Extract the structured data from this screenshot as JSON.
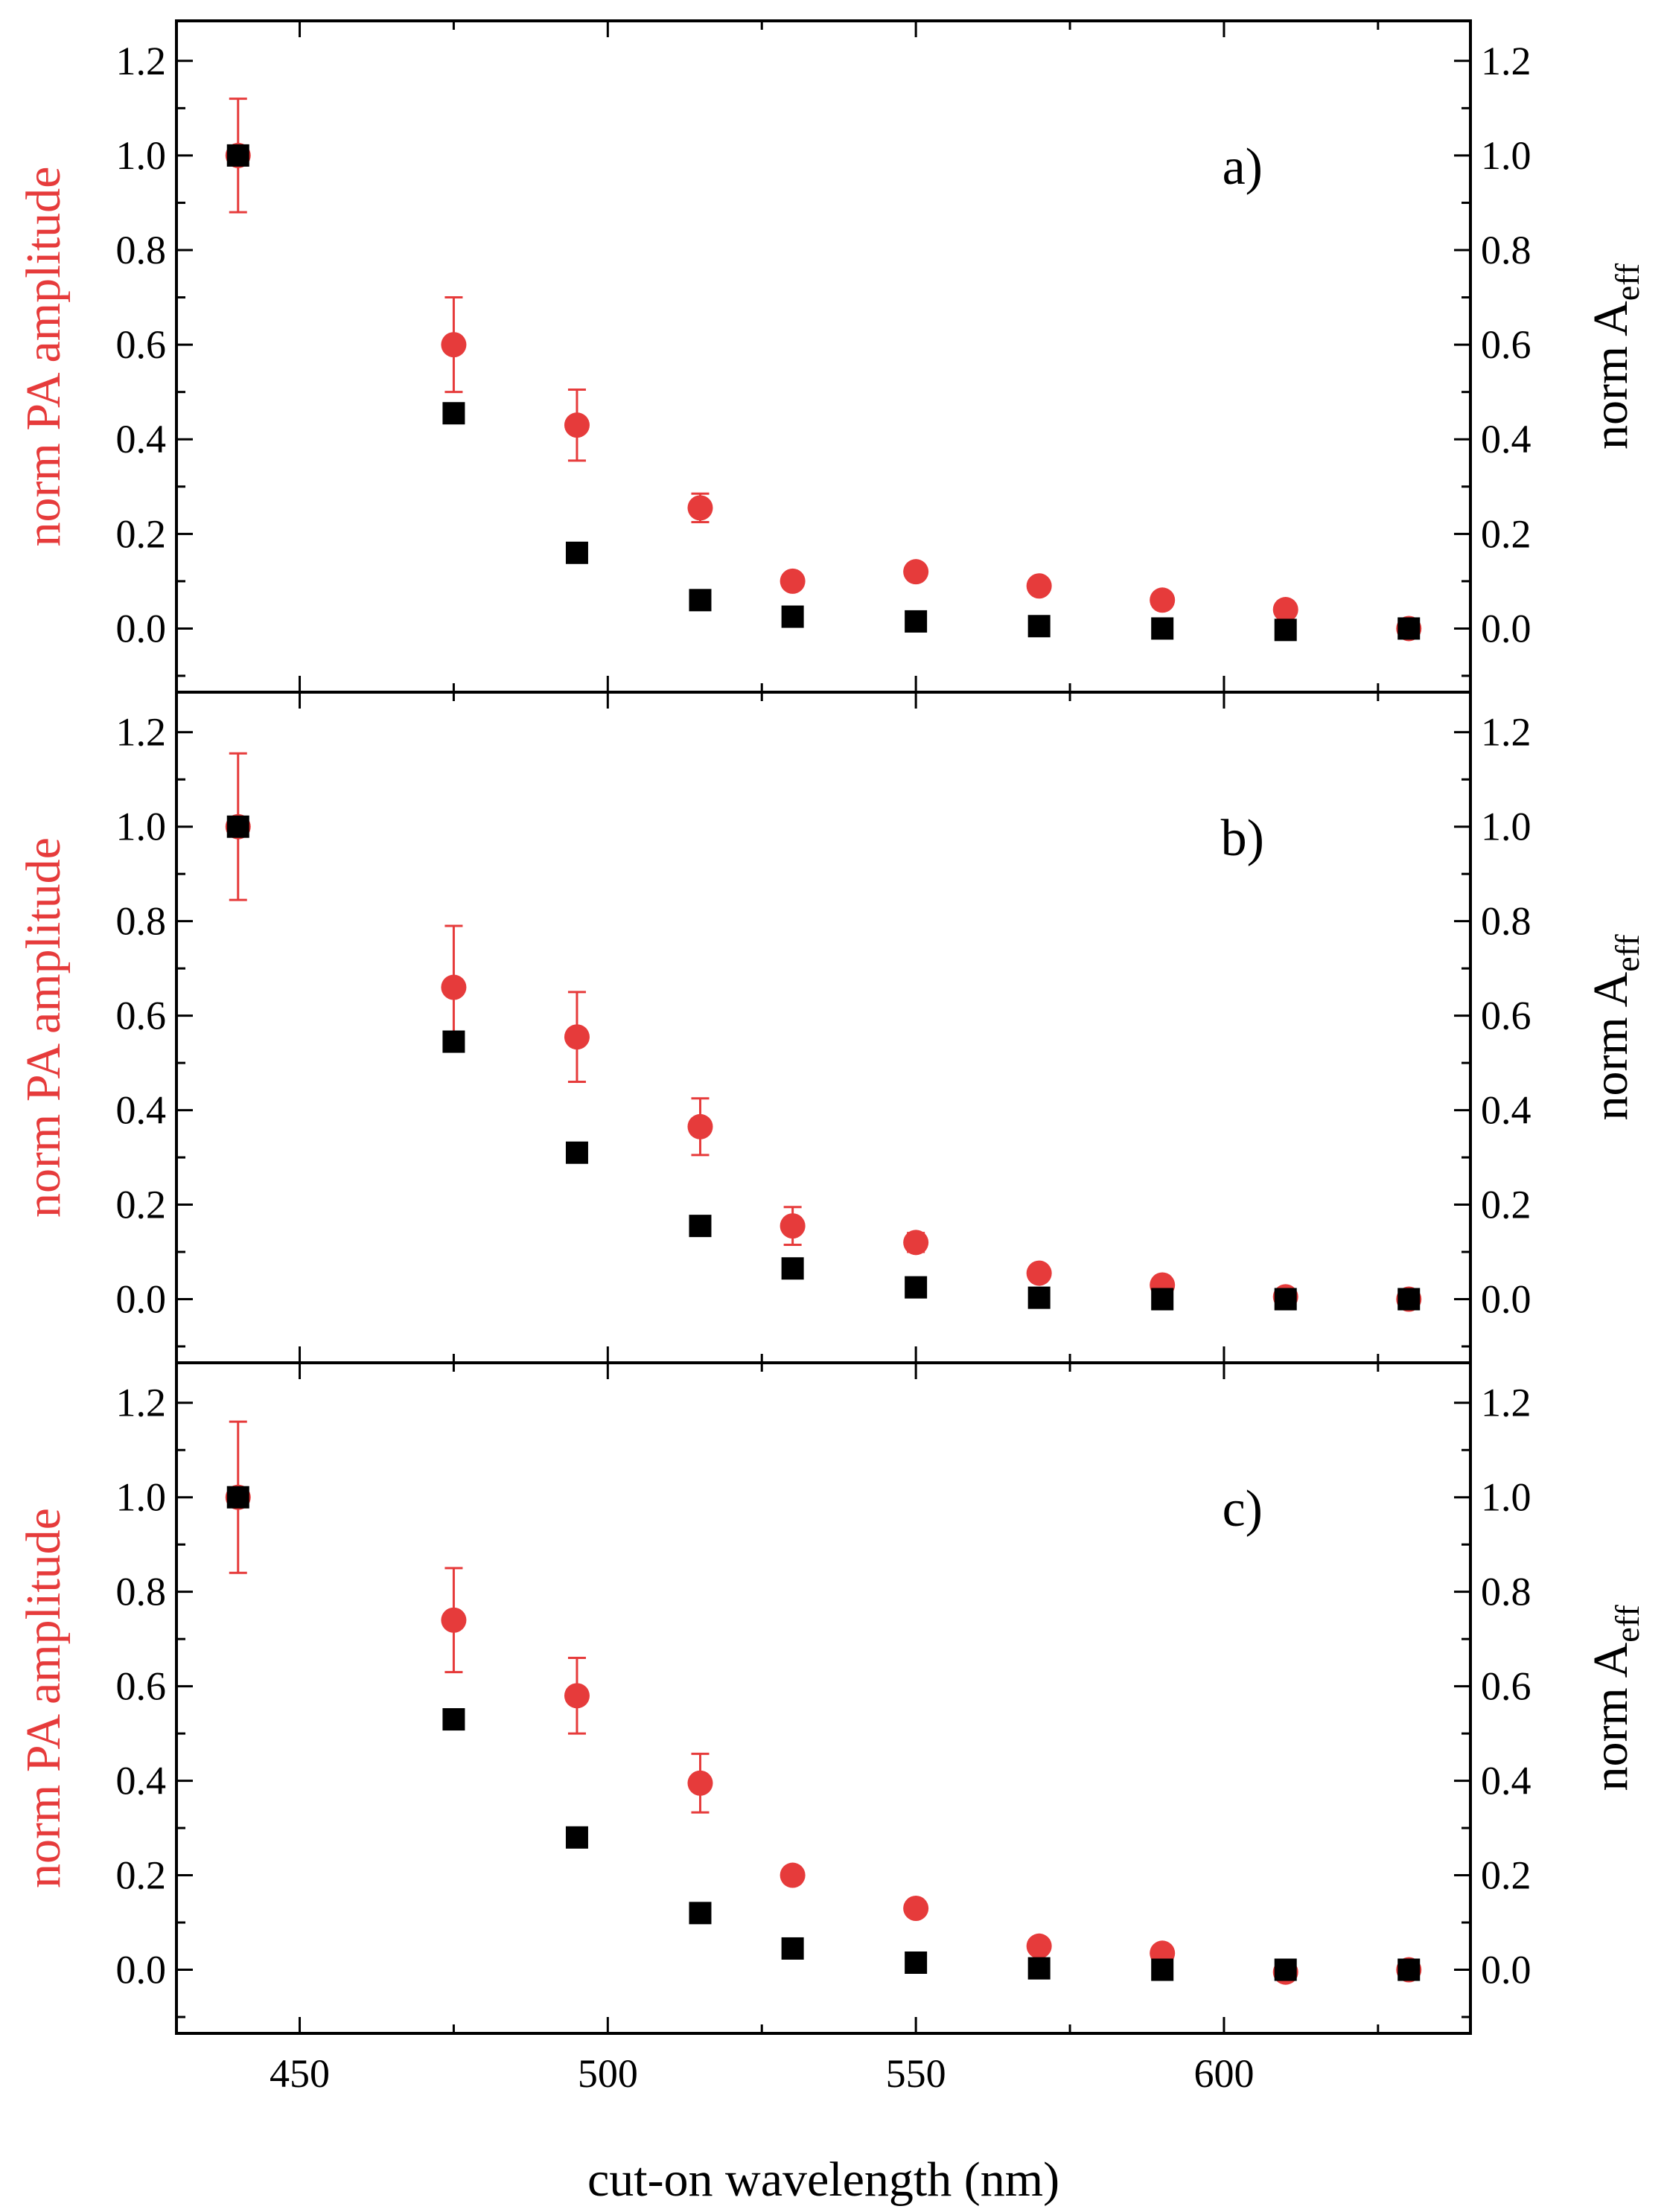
{
  "figure": {
    "xlabel": "cut-on wavelength (nm)",
    "xticks": [
      "450",
      "500",
      "550",
      "600"
    ],
    "xtick_values": [
      450,
      500,
      550,
      600
    ],
    "yticks": [
      "0.0",
      "0.2",
      "0.4",
      "0.6",
      "0.8",
      "1.0",
      "1.2"
    ],
    "ytick_values": [
      0.0,
      0.2,
      0.4,
      0.6,
      0.8,
      1.0,
      1.2
    ],
    "ylabel_left": "norm PA amplitude",
    "ylabel_right_main": "norm A",
    "ylabel_right_sub": "eff",
    "colors": {
      "pa": "#e63b3b",
      "aeff": "#000000",
      "axis": "#000000"
    }
  },
  "chart_data": [
    {
      "type": "scatter",
      "panel": "a)",
      "x": [
        440,
        475,
        495,
        515,
        530,
        550,
        570,
        590,
        610,
        630
      ],
      "xlim": [
        430,
        640
      ],
      "ylim": [
        -0.1,
        1.25
      ],
      "series": [
        {
          "name": "norm PA amplitude",
          "axis": "left",
          "marker": "circle",
          "color": "#e63b3b",
          "values": [
            1.0,
            0.6,
            0.43,
            0.255,
            0.1,
            0.12,
            0.09,
            0.06,
            0.04,
            0.0
          ],
          "errors": [
            0.12,
            0.1,
            0.075,
            0.03,
            0,
            0,
            0,
            0,
            0,
            0
          ]
        },
        {
          "name": "norm A_eff",
          "axis": "right",
          "marker": "square",
          "color": "#000000",
          "values": [
            1.0,
            0.455,
            0.16,
            0.06,
            0.025,
            0.015,
            0.005,
            0.0,
            -0.003,
            0.0
          ]
        }
      ]
    },
    {
      "type": "scatter",
      "panel": "b)",
      "x": [
        440,
        475,
        495,
        515,
        530,
        550,
        570,
        590,
        610,
        630
      ],
      "xlim": [
        430,
        640
      ],
      "ylim": [
        -0.1,
        1.25
      ],
      "series": [
        {
          "name": "norm PA amplitude",
          "axis": "left",
          "marker": "circle",
          "color": "#e63b3b",
          "values": [
            1.0,
            0.66,
            0.555,
            0.365,
            0.155,
            0.12,
            0.055,
            0.03,
            0.005,
            0.0
          ],
          "errors": [
            0.155,
            0.13,
            0.095,
            0.06,
            0.04,
            0.02,
            0,
            0,
            0,
            0
          ]
        },
        {
          "name": "norm A_eff",
          "axis": "right",
          "marker": "square",
          "color": "#000000",
          "values": [
            1.0,
            0.545,
            0.31,
            0.155,
            0.065,
            0.025,
            0.003,
            0.0,
            0.0,
            0.0
          ]
        }
      ]
    },
    {
      "type": "scatter",
      "panel": "c)",
      "x": [
        440,
        475,
        495,
        515,
        530,
        550,
        570,
        590,
        610,
        630
      ],
      "xlim": [
        430,
        640
      ],
      "ylim": [
        -0.1,
        1.25
      ],
      "series": [
        {
          "name": "norm PA amplitude",
          "axis": "left",
          "marker": "circle",
          "color": "#e63b3b",
          "values": [
            1.0,
            0.74,
            0.58,
            0.395,
            0.2,
            0.13,
            0.05,
            0.035,
            -0.005,
            0.0
          ],
          "errors": [
            0.16,
            0.11,
            0.08,
            0.062,
            0,
            0,
            0,
            0,
            0,
            0
          ]
        },
        {
          "name": "norm A_eff",
          "axis": "right",
          "marker": "square",
          "color": "#000000",
          "values": [
            1.0,
            0.53,
            0.28,
            0.12,
            0.045,
            0.015,
            0.003,
            0.0,
            0.0,
            0.0
          ]
        }
      ]
    }
  ]
}
